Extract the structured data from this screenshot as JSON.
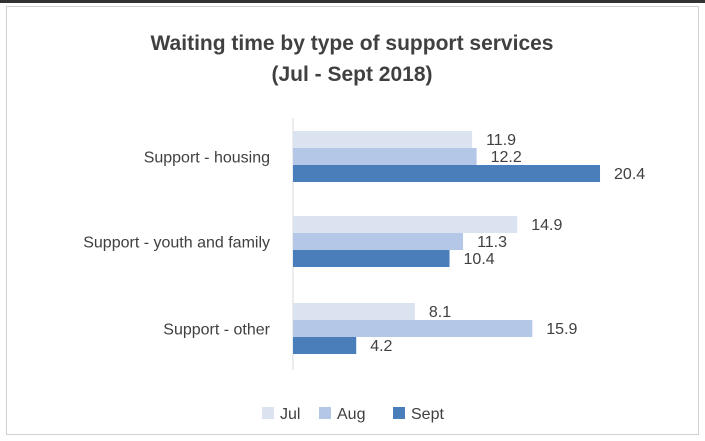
{
  "chart_data": {
    "type": "bar",
    "orientation": "horizontal",
    "title": "Waiting time by type of support services",
    "subtitle": "(Jul - Sept 2018)",
    "categories": [
      "Support - housing",
      "Support - youth and family",
      "Support - other"
    ],
    "series": [
      {
        "name": "Jul",
        "color": "#dce3f0",
        "values": [
          11.9,
          14.9,
          8.1
        ]
      },
      {
        "name": "Aug",
        "color": "#b4c7e7",
        "values": [
          12.2,
          11.3,
          15.9
        ]
      },
      {
        "name": "Sept",
        "color": "#4a7ebb",
        "values": [
          20.4,
          10.4,
          4.2
        ]
      }
    ],
    "xlim": [
      0,
      25
    ],
    "grid": false,
    "legend_position": "bottom"
  }
}
